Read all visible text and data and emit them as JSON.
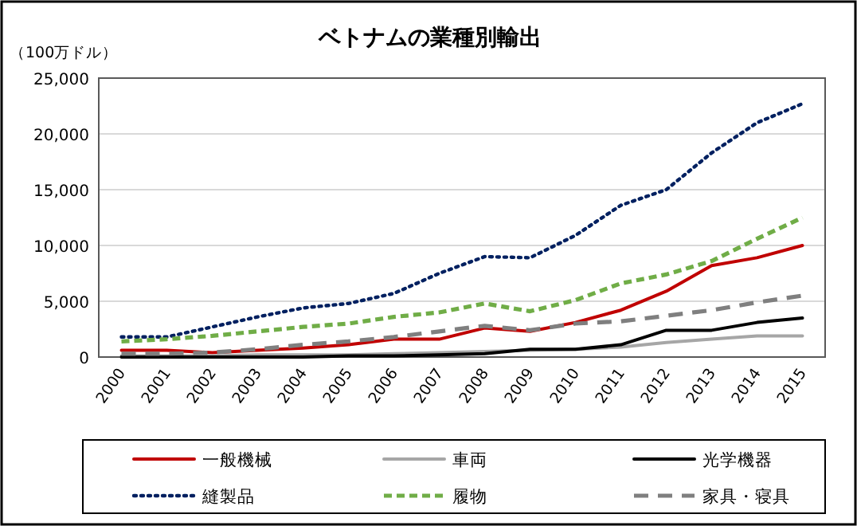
{
  "chart_data": {
    "type": "line",
    "title": "ベトナムの業種別輸出",
    "ylabel": "（100万ドル）",
    "categories": [
      "2000",
      "2001",
      "2002",
      "2003",
      "2004",
      "2005",
      "2006",
      "2007",
      "2008",
      "2009",
      "2010",
      "2011",
      "2012",
      "2013",
      "2014",
      "2015"
    ],
    "ylim": [
      0,
      25000
    ],
    "yticks": [
      {
        "value": 0,
        "label": "0"
      },
      {
        "value": 5000,
        "label": "5,000"
      },
      {
        "value": 10000,
        "label": "10,000"
      },
      {
        "value": 15000,
        "label": "15,000"
      },
      {
        "value": 20000,
        "label": "20,000"
      },
      {
        "value": 25000,
        "label": "25,000"
      }
    ],
    "grid": "y",
    "legend": "bottom",
    "series": [
      {
        "name": "一般機械",
        "color": "#c00000",
        "line_style": "solid",
        "values": [
          600,
          600,
          400,
          600,
          800,
          1100,
          1600,
          1600,
          2600,
          2300,
          3100,
          4200,
          5900,
          8200,
          8900,
          10000
        ]
      },
      {
        "name": "車両",
        "color": "#a6a6a6",
        "line_style": "solid",
        "values": [
          100,
          100,
          100,
          200,
          200,
          200,
          300,
          400,
          500,
          600,
          700,
          900,
          1300,
          1600,
          1900,
          1900
        ]
      },
      {
        "name": "光学機器",
        "color": "#000000",
        "line_style": "solid",
        "values": [
          0,
          0,
          0,
          0,
          0,
          100,
          100,
          200,
          300,
          700,
          700,
          1100,
          2400,
          2400,
          3100,
          3500
        ]
      },
      {
        "name": "縫製品",
        "color": "#002060",
        "line_style": "dotted",
        "values": [
          1800,
          1800,
          2700,
          3600,
          4400,
          4800,
          5700,
          7500,
          9000,
          8900,
          10900,
          13600,
          15000,
          18300,
          21000,
          22700
        ]
      },
      {
        "name": "履物",
        "color": "#70ad47",
        "line_style": "dashed",
        "values": [
          1400,
          1600,
          1900,
          2300,
          2700,
          3000,
          3600,
          4000,
          4800,
          4100,
          5100,
          6600,
          7400,
          8600,
          10600,
          12500
        ]
      },
      {
        "name": "家具・寝具",
        "color": "#7f7f7f",
        "line_style": "longdash",
        "values": [
          300,
          300,
          400,
          700,
          1100,
          1400,
          1800,
          2300,
          2800,
          2400,
          3000,
          3200,
          3700,
          4200,
          4900,
          5500
        ]
      }
    ]
  }
}
